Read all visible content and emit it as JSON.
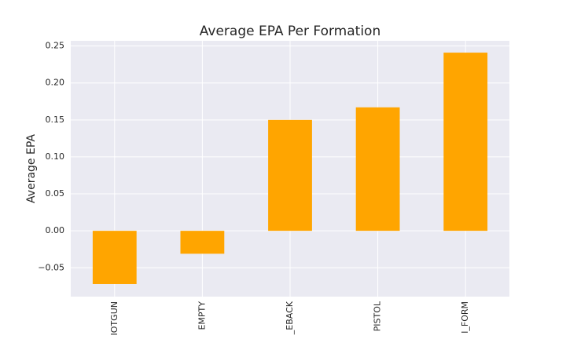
{
  "chart_data": {
    "type": "bar",
    "title": "Average EPA Per Formation",
    "y_label": "Average EPA",
    "categories": [
      "IOTGUN",
      "EMPTY",
      "_EBACK",
      "PISTOL",
      "I_FORM"
    ],
    "values": [
      -0.072,
      -0.031,
      0.15,
      0.167,
      0.241
    ],
    "color": "#ffa500",
    "ylim": [
      -0.089,
      0.257
    ],
    "yticks": [
      {
        "value": -0.05,
        "label": "−0.05"
      },
      {
        "value": 0,
        "label": "0.00"
      },
      {
        "value": 0.05,
        "label": "0.05"
      },
      {
        "value": 0.1,
        "label": "0.10"
      },
      {
        "value": 0.15,
        "label": "0.15"
      },
      {
        "value": 0.2,
        "label": "0.20"
      },
      {
        "value": 0.25,
        "label": "0.25"
      }
    ],
    "grid": true
  }
}
